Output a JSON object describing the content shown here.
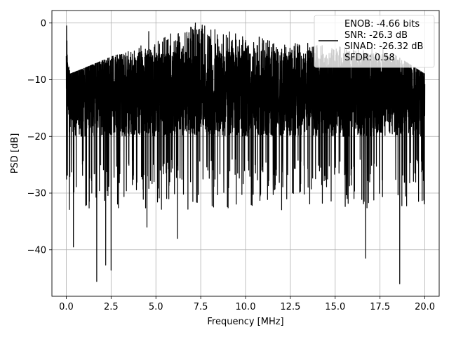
{
  "chart_data": {
    "type": "line",
    "title": "",
    "xlabel": "Frequency [MHz]",
    "ylabel": "PSD [dB]",
    "xlim": [
      -0.8,
      20.8
    ],
    "ylim": [
      -48.2,
      2.2
    ],
    "xticks": [
      0.0,
      2.5,
      5.0,
      7.5,
      10.0,
      12.5,
      15.0,
      17.5,
      20.0
    ],
    "xtick_labels": [
      "0.0",
      "2.5",
      "5.0",
      "7.5",
      "10.0",
      "12.5",
      "15.0",
      "17.5",
      "20.0"
    ],
    "yticks": [
      0,
      -10,
      -20,
      -30,
      -40
    ],
    "ytick_labels": [
      "0",
      "−10",
      "−20",
      "−30",
      "−40"
    ],
    "grid": true,
    "legend_position": "top-right",
    "legend_entries": [
      "ENOB: -4.66 bits",
      "SNR: -26.3 dB",
      "SINAD: -26.32 dB",
      "SFDR: 0.58"
    ],
    "series": [
      {
        "color": "#000000",
        "x_range": [
          0,
          20
        ],
        "points": 4000,
        "typical_range": [
          -20,
          -5
        ],
        "envelope_max": [
          [
            0,
            -1
          ],
          [
            0.2,
            -9
          ],
          [
            1,
            -8
          ],
          [
            2.5,
            -6
          ],
          [
            5,
            -3
          ],
          [
            7.2,
            0
          ],
          [
            10,
            -2
          ],
          [
            12,
            -3
          ],
          [
            15,
            -4
          ],
          [
            17.5,
            -4
          ],
          [
            20,
            -9
          ]
        ],
        "peaks": [
          {
            "x": 0.02,
            "y": -0.5
          },
          {
            "x": 7.2,
            "y": 0.0
          },
          {
            "x": 4.6,
            "y": -1.5
          }
        ],
        "dips": [
          {
            "x": 0.4,
            "y": -39.5
          },
          {
            "x": 1.7,
            "y": -45.6
          },
          {
            "x": 2.2,
            "y": -42.7
          },
          {
            "x": 2.5,
            "y": -43.6
          },
          {
            "x": 4.5,
            "y": -36.0
          },
          {
            "x": 6.2,
            "y": -38.0
          },
          {
            "x": 16.7,
            "y": -41.5
          },
          {
            "x": 18.6,
            "y": -46.0
          }
        ]
      }
    ]
  }
}
